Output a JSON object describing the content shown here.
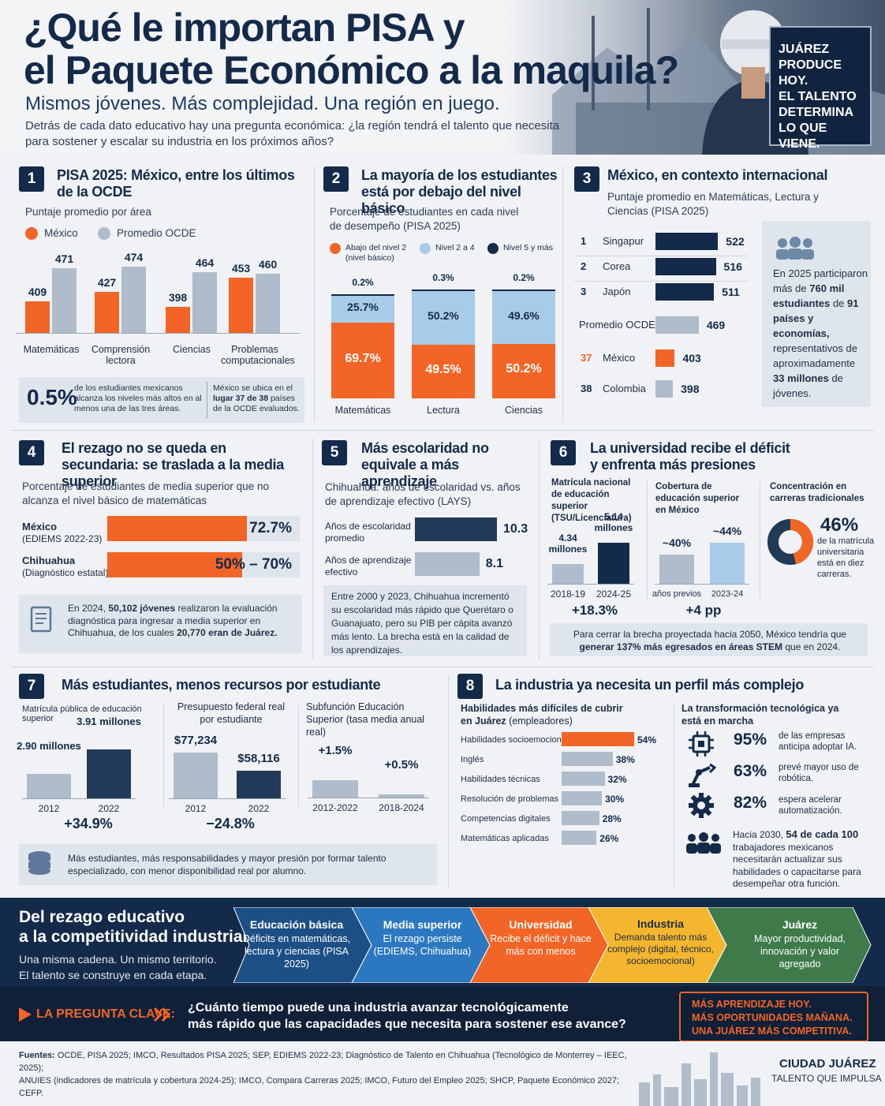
{
  "hero": {
    "title_line1": "¿Qué le importan PISA y",
    "title_line2": "el Paquete Económico a la maquila?",
    "subtitle": "Mismos jóvenes. Más complejidad. Una región en juego.",
    "intro": "Detrás de cada dato educativo hay una pregunta económica: ¿la región tendrá el talento que necesita para sostener y escalar su industria en los próximos años?",
    "box_lines": [
      "JUÁREZ",
      "PRODUCE HOY.",
      "EL TALENTO",
      "DETERMINA",
      "LO QUE VIENE."
    ]
  },
  "colors": {
    "orange": "#f26526",
    "navy": "#132a4a",
    "gray": "#aebccb",
    "light_blue": "#a7cbe8",
    "green": "#3e7a4a",
    "yellow": "#f4b62f",
    "blue": "#2c78c0"
  },
  "p1": {
    "num": "1",
    "title": "PISA 2025: México, entre los últimos de la OCDE",
    "subtitle": "Puntaje promedio por área",
    "legend": [
      "México",
      "Promedio OCDE"
    ],
    "chart_data": {
      "type": "bar",
      "categories": [
        "Matemáticas",
        "Comprensión lectora",
        "Ciencias",
        "Problemas computacionales"
      ],
      "series": [
        {
          "name": "México",
          "values": [
            409,
            427,
            398,
            453
          ]
        },
        {
          "name": "Promedio OCDE",
          "values": [
            471,
            474,
            464,
            460
          ]
        }
      ]
    },
    "stat": "0.5%",
    "stat_text": "de los estudiantes mexicanos alcanza los niveles más altos en al menos una de las tres áreas.",
    "rank_text_a": "México se ubica en el",
    "rank_text_b": "lugar 37 de 38",
    "rank_text_c": "países de la OCDE evaluados."
  },
  "p2": {
    "num": "2",
    "title": "La mayoría de los estudiantes está por debajo del nivel básico",
    "subtitle": "Porcentaje de estudiantes en cada nivel de desempeño (PISA 2025)",
    "legend": [
      "Abajo del nivel 2 (nivel básico)",
      "Nivel 2 a 4",
      "Nivel 5 y más"
    ],
    "chart_data": {
      "type": "bar",
      "categories": [
        "Matemáticas",
        "Lectura",
        "Ciencias"
      ],
      "series": [
        {
          "name": "Abajo del nivel 2",
          "values": [
            69.7,
            49.5,
            50.2
          ],
          "labels": [
            "69.7%",
            "49.5%",
            "50.2%"
          ]
        },
        {
          "name": "Nivel 2 a 4",
          "values": [
            25.7,
            50.2,
            49.6
          ],
          "labels": [
            "25.7%",
            "50.2%",
            "49.6%"
          ]
        },
        {
          "name": "Nivel 5 y más",
          "values": [
            0.2,
            0.3,
            0.2
          ],
          "labels": [
            "0.2%",
            "0.3%",
            "0.2%"
          ]
        }
      ]
    }
  },
  "p3": {
    "num": "3",
    "title": "México, en contexto internacional",
    "subtitle": "Puntaje promedio en Matemáticas, Lectura y Ciencias (PISA 2025)",
    "chart_data": {
      "type": "bar",
      "categories": [
        "Singapur",
        "Corea",
        "Japón",
        "Promedio OCDE",
        "México",
        "Colombia"
      ],
      "ranks": [
        "1",
        "2",
        "3",
        "",
        "37",
        "38"
      ],
      "values": [
        522,
        516,
        511,
        469,
        403,
        398
      ]
    },
    "info": {
      "a": "En 2025 participaron más de",
      "b": "760 mil estudiantes",
      "c": "de",
      "d": "91 países",
      "e": "y economías,",
      "f": "representativos de aproximadamente",
      "g": "33 millones",
      "h": "de jóvenes."
    }
  },
  "p4": {
    "num": "4",
    "title": "El rezago no se queda en secundaria: se traslada a la media superior",
    "subtitle": "Porcentaje de estudiantes de media superior que no alcanza el nivel básico de matemáticas",
    "rows": [
      {
        "name": "México",
        "note": "(EDIEMS 2022-23)",
        "value": "72.7%"
      },
      {
        "name": "Chihuahua",
        "note": "(Diagnóstico estatal)",
        "value": "50% – 70%"
      }
    ],
    "chart_data": {
      "type": "bar",
      "categories": [
        "México",
        "Chihuahua"
      ],
      "values": [
        72.7,
        70
      ]
    },
    "note_a": "En 2024,",
    "note_b": "50,102 jóvenes",
    "note_c": "realizaron la evaluación diagnóstica para ingresar a media superior en Chihuahua, de los cuales",
    "note_d": "20,770 eran de Juárez."
  },
  "p5": {
    "num": "5",
    "title": "Más escolaridad no equivale a más aprendizaje",
    "subtitle": "Chihuahua: años de escolaridad vs. años de aprendizaje efectivo (LAYS)",
    "chart_data": {
      "type": "bar",
      "categories": [
        "Años de escolaridad promedio",
        "Años de aprendizaje efectivo"
      ],
      "values": [
        10.3,
        8.1
      ]
    },
    "labels": [
      "Años de escolaridad promedio",
      "Años de aprendizaje efectivo"
    ],
    "values": [
      "10.3",
      "8.1"
    ],
    "note": "Entre 2000 y 2023, Chihuahua incrementó su escolaridad más rápido que Querétaro o Guanajuato, pero su PIB per cápita avanzó más lento. La brecha está en la calidad de los aprendizajes."
  },
  "p6": {
    "num": "6",
    "title": "La universidad recibe el déficit y enfrenta más presiones",
    "c1": {
      "title": "Matrícula nacional de educación superior (TSU/Licenciatura)",
      "values": [
        "4.34 millones",
        "5.14 millones"
      ],
      "cats": [
        "2018-19",
        "2024-25"
      ],
      "growth": "+18.3%"
    },
    "c2": {
      "title": "Cobertura de educación superior en México",
      "values": [
        "~40%",
        "~44%"
      ],
      "cats": [
        "años previos",
        "2023-24"
      ],
      "growth": "+4 pp"
    },
    "c3": {
      "title": "Concentración en carreras tradicionales",
      "value": "46%",
      "text": "de la matrícula universitaria está en diez carreras."
    },
    "chart_data": [
      {
        "type": "bar",
        "categories": [
          "2018-19",
          "2024-25"
        ],
        "values": [
          4.34,
          5.14
        ]
      },
      {
        "type": "bar",
        "categories": [
          "años previos",
          "2023-24"
        ],
        "values": [
          40,
          44
        ]
      },
      {
        "type": "pie",
        "values": [
          46,
          54
        ]
      }
    ],
    "note_a": "Para cerrar la brecha proyectada hacia 2050, México tendría que",
    "note_b": "generar 137% más egresados en áreas STEM",
    "note_c": "que en 2024."
  },
  "p7": {
    "num": "7",
    "title": "Más estudiantes, menos recursos por estudiante",
    "c1": {
      "title": "Matrícula pública de educación superior",
      "values": [
        "2.90 millones",
        "3.91 millones"
      ],
      "cats": [
        "2012",
        "2022"
      ],
      "growth": "+34.9%"
    },
    "c2": {
      "title": "Presupuesto federal real por estudiante",
      "values": [
        "$77,234",
        "$58,116"
      ],
      "cats": [
        "2012",
        "2022"
      ],
      "growth": "−24.8%"
    },
    "c3": {
      "title": "Subfunción Educación Superior (tasa media anual real)",
      "values": [
        "+1.5%",
        "+0.5%"
      ],
      "cats": [
        "2012-2022",
        "2018-2024"
      ]
    },
    "chart_data": [
      {
        "type": "bar",
        "categories": [
          "2012",
          "2022"
        ],
        "values": [
          2.9,
          3.91
        ]
      },
      {
        "type": "bar",
        "categories": [
          "2012",
          "2022"
        ],
        "values": [
          77234,
          58116
        ]
      },
      {
        "type": "bar",
        "categories": [
          "2012-2022",
          "2018-2024"
        ],
        "values": [
          1.5,
          0.5
        ]
      }
    ],
    "note": "Más estudiantes, más responsabilidades y mayor presión por formar talento especializado, con menor disponibilidad real por alumno."
  },
  "p8": {
    "num": "8",
    "title": "La industria ya necesita un perfil más complejo",
    "c1_title_a": "Habilidades más difíciles de cubrir",
    "c1_title_b": "en Juárez",
    "c1_title_c": "(empleadores)",
    "chart_data": {
      "type": "bar",
      "categories": [
        "Habilidades socioemocionales",
        "Inglés",
        "Habilidades técnicas",
        "Resolución de problemas",
        "Competencias digitales",
        "Matemáticas aplicadas"
      ],
      "values": [
        54,
        38,
        32,
        30,
        28,
        26
      ],
      "labels": [
        "54%",
        "38%",
        "32%",
        "30%",
        "28%",
        "26%"
      ]
    },
    "c2_title": "La transformación tecnológica ya está en marcha",
    "stats": [
      {
        "value": "95%",
        "text": "de las empresas anticipa adoptar IA."
      },
      {
        "value": "63%",
        "text": "prevé mayor uso de robótica."
      },
      {
        "value": "82%",
        "text": "espera acelerar automatización."
      }
    ],
    "people_a": "Hacia 2030,",
    "people_b": "54 de cada 100",
    "people_c": "trabajadores mexicanos necesitarán actualizar sus habilidades o capacitarse para desempeñar otra función."
  },
  "chain": {
    "title_a": "Del rezago educativo",
    "title_b": "a la competitividad industrial",
    "text_a": "Una misma cadena. Un mismo territorio.",
    "text_b": "El talento se construye en cada etapa.",
    "steps": [
      {
        "title": "Educación básica",
        "text": "Déficits en matemáticas, lectura y ciencias (PISA 2025)"
      },
      {
        "title": "Media superior",
        "text": "El rezago persiste (EDIEMS, Chihuahua)"
      },
      {
        "title": "Universidad",
        "text": "Recibe el déficit y hace más con menos"
      },
      {
        "title": "Industria",
        "text": "Demanda talento más complejo (digital, técnico, socioemocional)"
      },
      {
        "title": "Juárez",
        "text": "Mayor productividad, innovación y valor agregado"
      }
    ]
  },
  "clave": {
    "label": "LA PREGUNTA CLAVE:",
    "question_a": "¿Cuánto tiempo puede una industria avanzar tecnológicamente",
    "question_b": "más rápido que las capacidades que necesita para sostener ese avance?",
    "box": [
      "MÁS APRENDIZAJE HOY.",
      "MÁS OPORTUNIDADES MAÑANA.",
      "UNA JUÁREZ MÁS COMPETITIVA."
    ]
  },
  "footer": {
    "label": "Fuentes:",
    "text_a": "OCDE, PISA 2025; IMCO, Resultados PISA 2025; SEP, EDIEMS 2022-23; Diagnóstico de Talento en Chihuahua (Tecnológico de Monterrey – IEEC, 2025);",
    "text_b": "ANUIES (indicadores de matrícula y cobertura 2024-25); IMCO, Compara Carreras 2025; IMCO, Futuro del Empleo 2025; SHCP, Paquete Económico 2027; CEFP.",
    "brand": "CIUDAD JUÁREZ",
    "tagline": "TALENTO QUE IMPULSA"
  }
}
